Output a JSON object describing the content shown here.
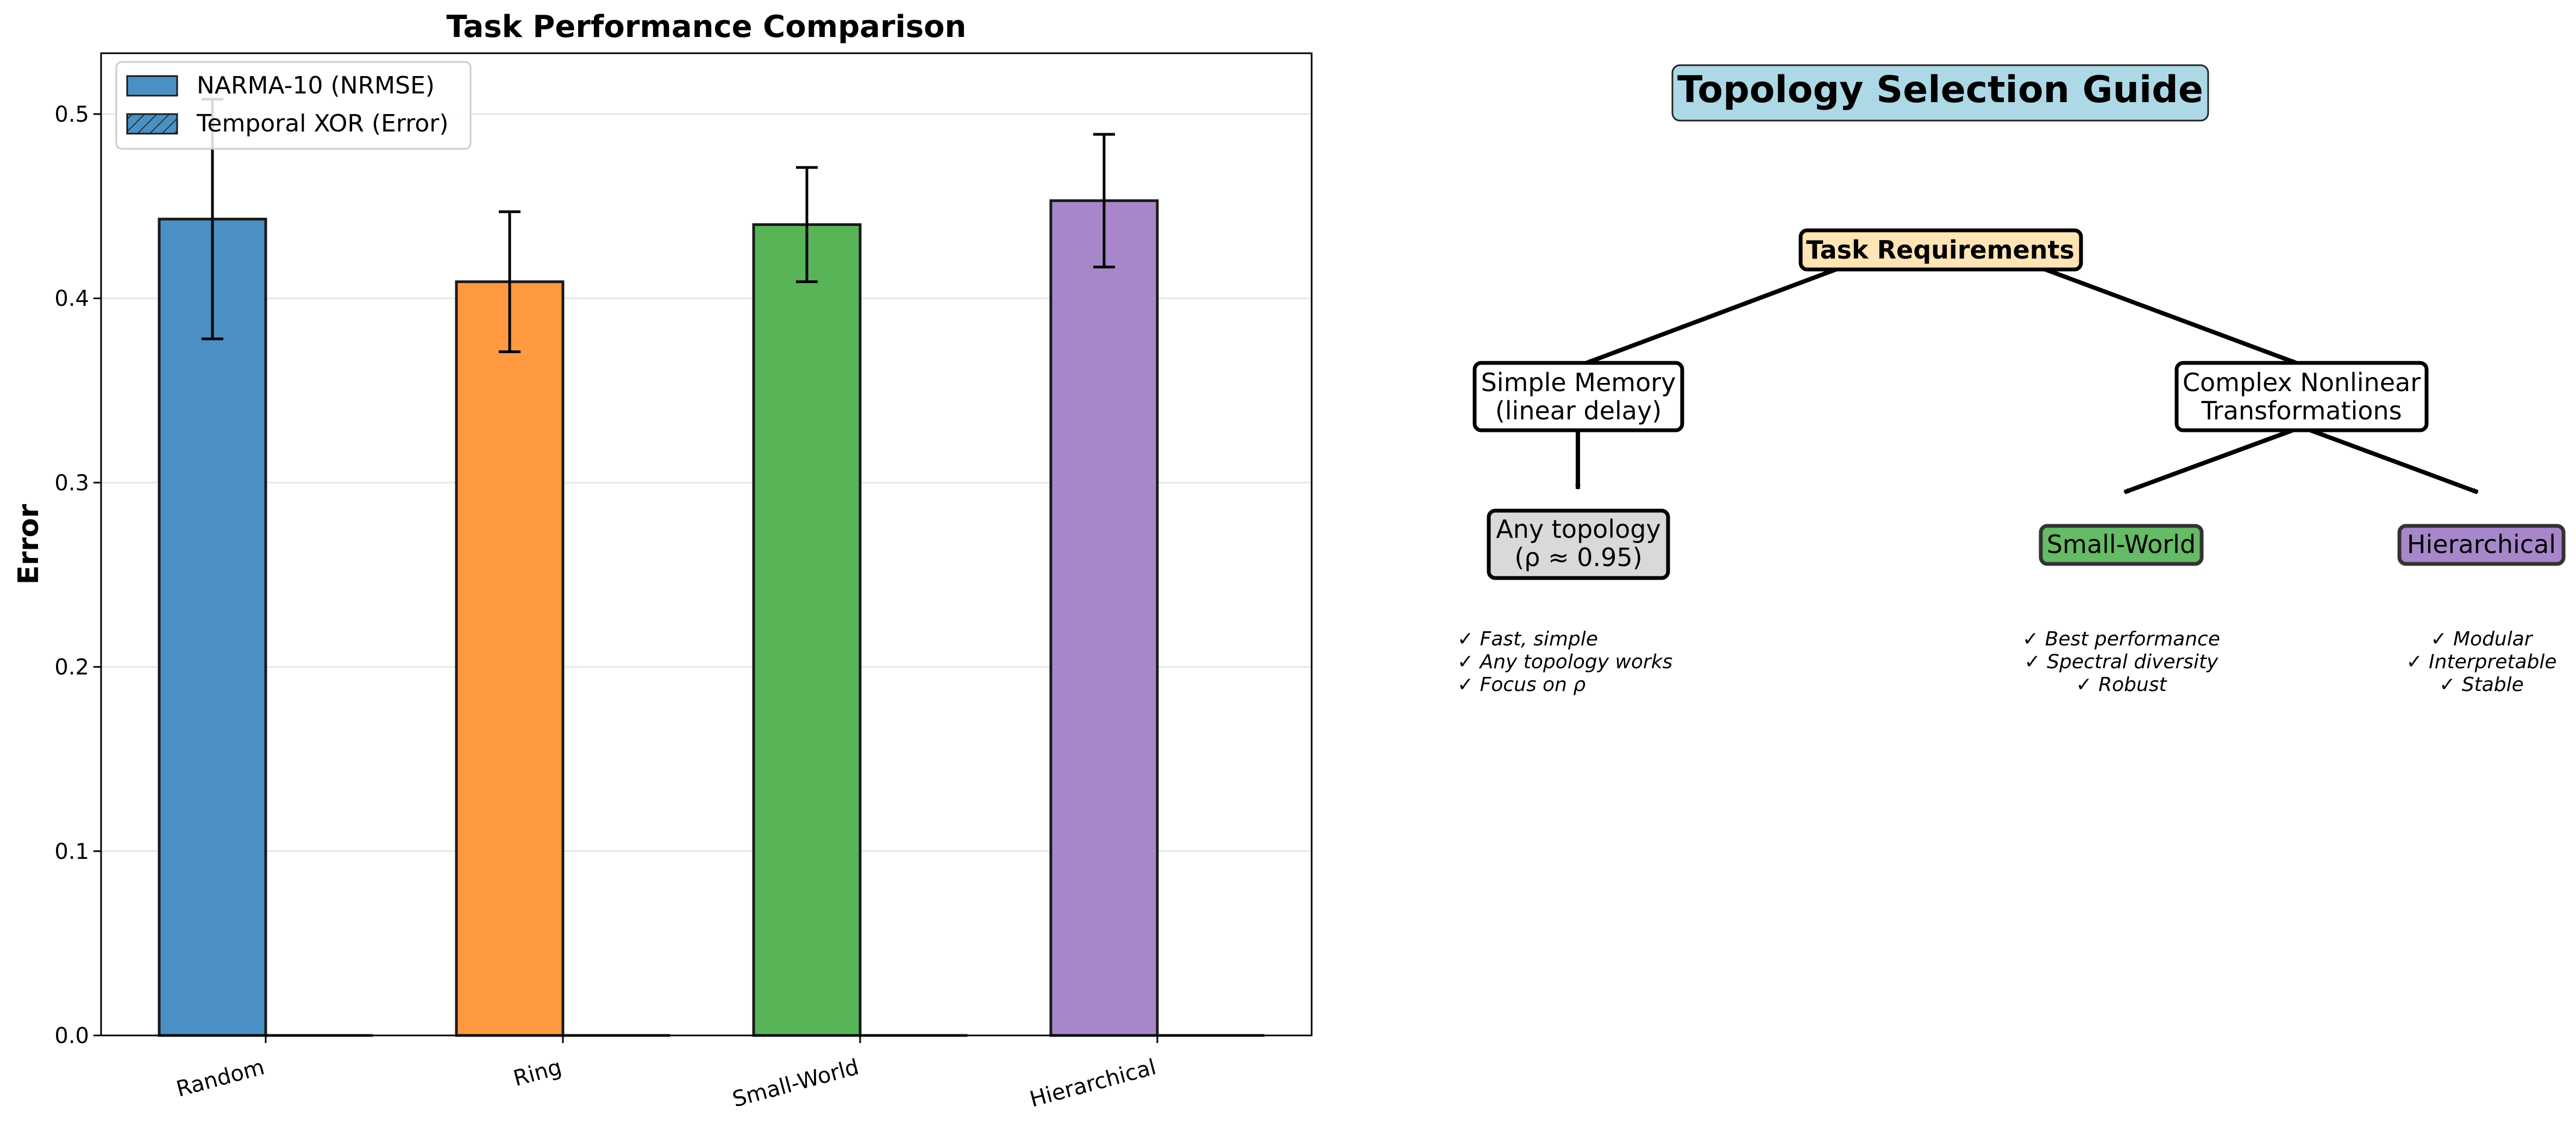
{
  "chart_data": {
    "type": "bar",
    "title": "Task Performance Comparison",
    "xlabel": "",
    "ylabel": "Error",
    "ylim": [
      0,
      0.533
    ],
    "yticks": [
      "0.0",
      "0.1",
      "0.2",
      "0.3",
      "0.4",
      "0.5"
    ],
    "grid": "y",
    "legend_position": "top-left",
    "categories": [
      "Random",
      "Ring",
      "Small-World",
      "Hierarchical"
    ],
    "bar_colors": [
      "#4a90c4",
      "#ff9a40",
      "#57b557",
      "#a787ca"
    ],
    "series": [
      {
        "name": "NARMA-10 (NRMSE)",
        "values": [
          0.443,
          0.409,
          0.44,
          0.453
        ],
        "errors": [
          0.065,
          0.038,
          0.031,
          0.036
        ]
      },
      {
        "name": "Temporal XOR (Error)",
        "values": [
          0.0,
          0.0,
          0.0,
          0.0
        ],
        "hatched": true
      }
    ]
  },
  "guide": {
    "title": "Topology Selection Guide",
    "root": "Task Requirements",
    "simple_branch": [
      "Simple Memory",
      "(linear delay)"
    ],
    "complex_branch": [
      "Complex Nonlinear",
      "Transformations"
    ],
    "any_leaf": [
      "Any topology",
      "(ρ ≈ 0.95)"
    ],
    "sw_leaf": "Small-World",
    "hier_leaf": "Hierarchical",
    "any_notes": [
      "✓ Fast, simple",
      "✓ Any topology works",
      "✓ Focus on ρ"
    ],
    "sw_notes": [
      "✓ Best performance",
      "✓ Spectral diversity",
      "✓ Robust"
    ],
    "hier_notes": [
      "✓ Modular",
      "✓ Interpretable",
      "✓ Stable"
    ],
    "colors": {
      "title_bg": "#add8e6",
      "root_bg": "#ffe4b5",
      "any_bg": "#d9d9d9",
      "sw_bg": "#66bb66",
      "hier_bg": "#a787ca"
    }
  }
}
